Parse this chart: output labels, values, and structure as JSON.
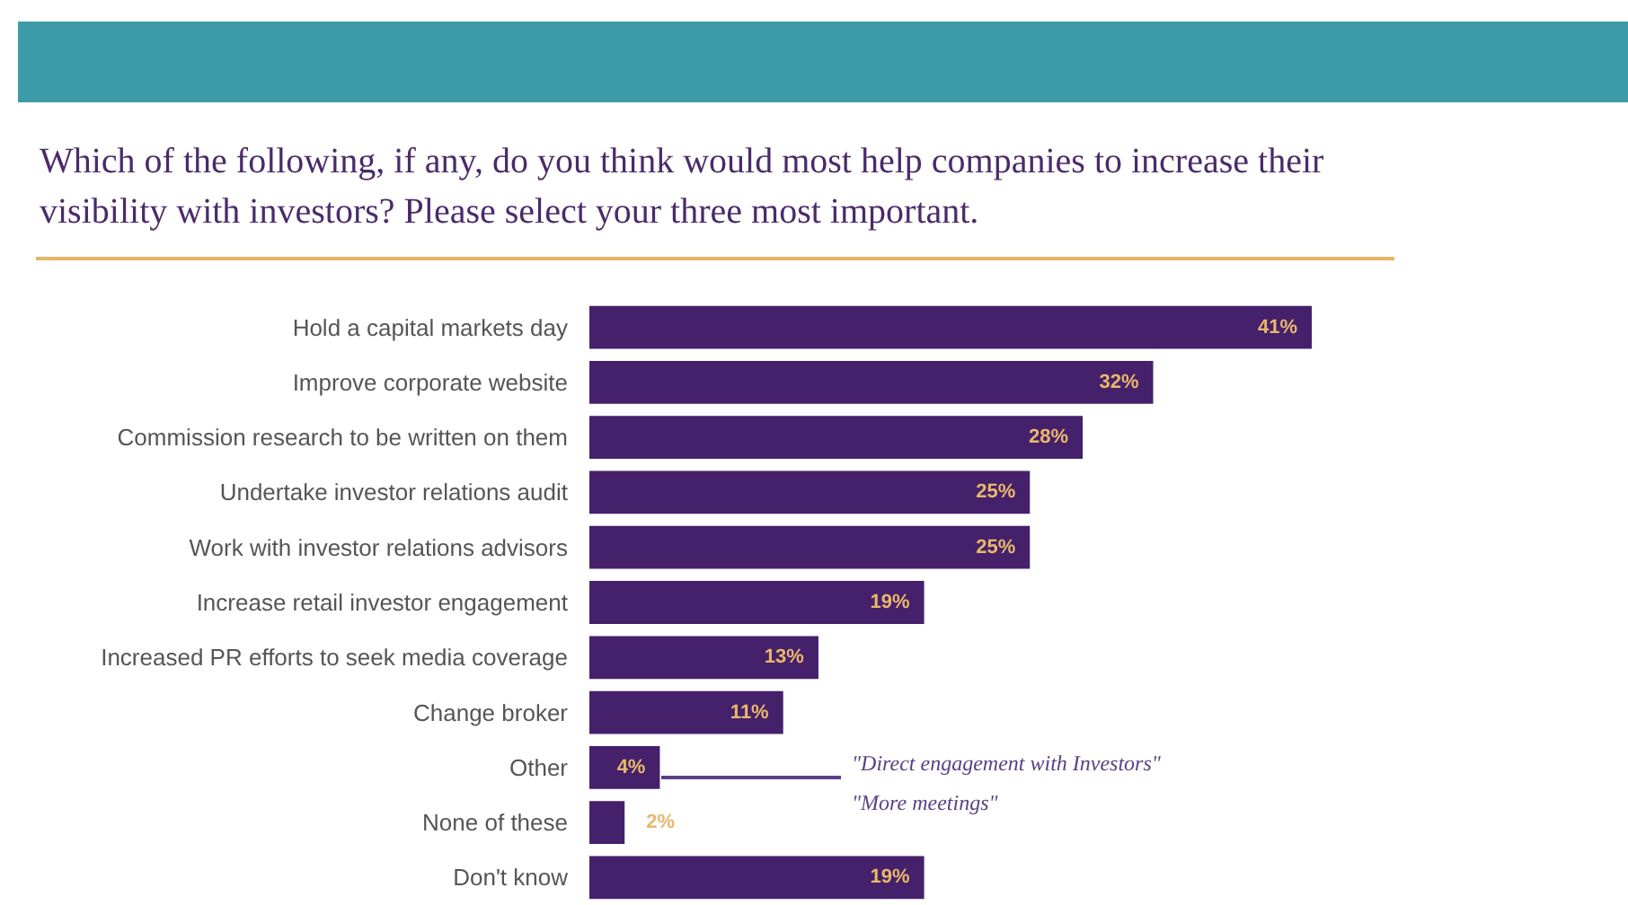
{
  "chart_data": {
    "type": "bar",
    "orientation": "horizontal",
    "title": "Which of the following, if any, do you think would most help companies to increase their visibility with investors? Please select your three most important.",
    "categories": [
      "Hold a capital markets day",
      "Improve corporate website",
      "Commission research to be written on them",
      "Undertake investor relations audit",
      "Work with investor relations advisors",
      "Increase retail investor engagement",
      "Increased PR efforts to seek media coverage",
      "Change broker",
      "Other",
      "None of these",
      "Don't know"
    ],
    "values": [
      41,
      32,
      28,
      25,
      25,
      19,
      13,
      11,
      4,
      2,
      19
    ],
    "value_labels": [
      "41%",
      "32%",
      "28%",
      "25%",
      "25%",
      "19%",
      "13%",
      "11%",
      "4%",
      "2%",
      "19%"
    ],
    "color": "#45206b",
    "annotations": [
      "\"Direct engagement with Investors\"",
      "\"More meetings\""
    ]
  }
}
